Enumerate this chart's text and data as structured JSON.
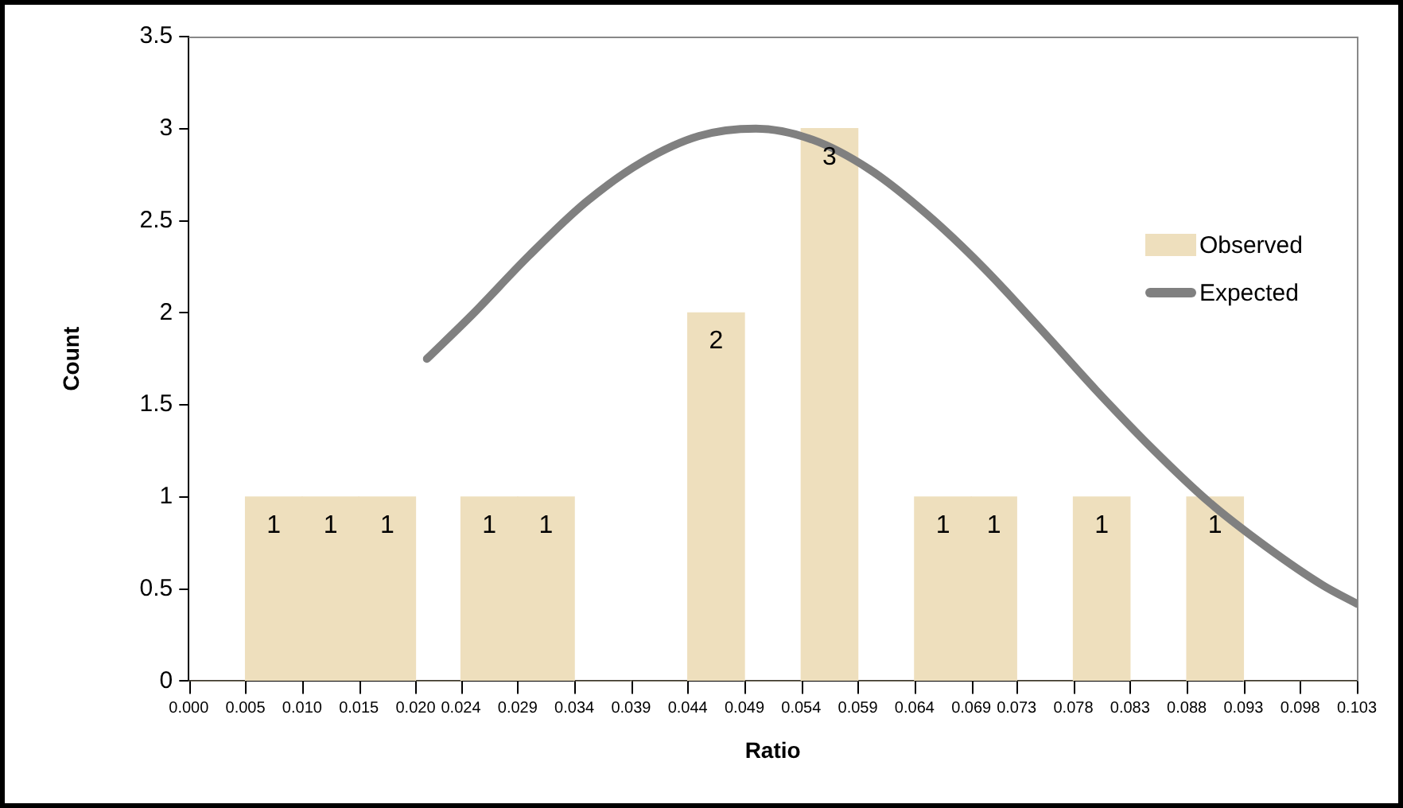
{
  "chart_data": {
    "type": "histogram",
    "xlabel": "Ratio",
    "ylabel": "Count",
    "bins": [
      0.0,
      0.005,
      0.01,
      0.015,
      0.02,
      0.024,
      0.029,
      0.034,
      0.039,
      0.044,
      0.049,
      0.054,
      0.059,
      0.064,
      0.069,
      0.073,
      0.078,
      0.083,
      0.088,
      0.093,
      0.098,
      0.103
    ],
    "xlim": [
      0.0,
      0.103
    ],
    "xticks": [
      {
        "value": 0,
        "label": "0.000"
      },
      0.005,
      {
        "value": 0.01,
        "label": "0.010"
      },
      0.015,
      {
        "value": 0.02,
        "label": "0.020"
      },
      0.024,
      0.029,
      0.034,
      0.039,
      0.044,
      0.049,
      0.054,
      0.059,
      0.064,
      0.069,
      0.073,
      0.078,
      0.083,
      0.088,
      0.093,
      0.098,
      0.103
    ],
    "ylim": [
      0,
      3.5
    ],
    "yticks": [
      0,
      0.5,
      1,
      1.5,
      2,
      2.5,
      3,
      3.5
    ],
    "series": [
      {
        "name": "Observed",
        "type": "histogram",
        "color": "#eedfbd",
        "values": [
          0,
          1,
          1,
          1,
          0,
          1,
          1,
          0,
          0,
          2,
          0,
          3,
          0,
          1,
          1,
          0,
          1,
          0,
          1,
          0,
          0
        ],
        "value_labels": [
          null,
          "1",
          "1",
          "1",
          null,
          "1",
          "1",
          null,
          null,
          "2",
          null,
          "3",
          null,
          "1",
          "1",
          null,
          "1",
          null,
          "1",
          null,
          null
        ]
      },
      {
        "name": "Expected",
        "type": "line",
        "color": "#808080",
        "x": [
          0.021,
          0.025,
          0.03,
          0.035,
          0.04,
          0.045,
          0.05,
          0.055,
          0.06,
          0.065,
          0.07,
          0.075,
          0.08,
          0.085,
          0.09,
          0.095,
          0.1,
          0.103
        ],
        "values": [
          1.75,
          1.99,
          2.31,
          2.6,
          2.82,
          2.96,
          3.0,
          2.94,
          2.78,
          2.54,
          2.25,
          1.92,
          1.58,
          1.26,
          0.97,
          0.73,
          0.52,
          0.42
        ]
      }
    ],
    "grid": false,
    "legend": "top right",
    "marker": "none",
    "line_style": "solid"
  }
}
